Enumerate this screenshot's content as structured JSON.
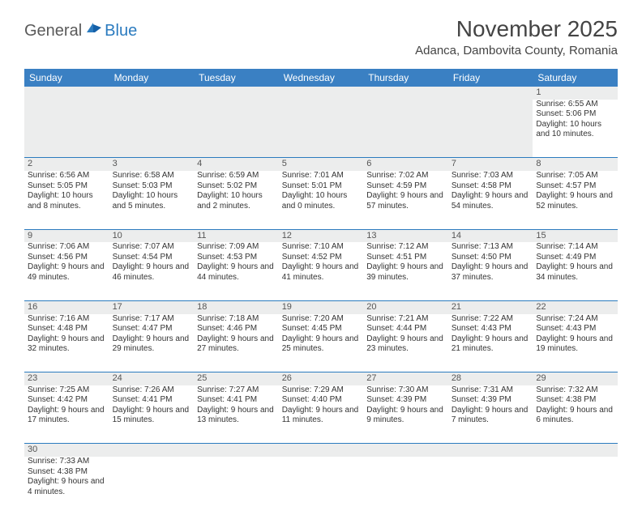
{
  "logo": {
    "general": "General",
    "blue": "Blue"
  },
  "title": "November 2025",
  "location": "Adanca, Dambovita County, Romania",
  "colors": {
    "header_bg": "#3a80c3",
    "header_text": "#ffffff",
    "daynum_bg": "#eceded",
    "border": "#2b7bbf",
    "logo_gray": "#5a5a5a",
    "logo_blue": "#2b7bbf"
  },
  "weekdays": [
    "Sunday",
    "Monday",
    "Tuesday",
    "Wednesday",
    "Thursday",
    "Friday",
    "Saturday"
  ],
  "weeks": [
    [
      null,
      null,
      null,
      null,
      null,
      null,
      {
        "n": "1",
        "sr": "6:55 AM",
        "ss": "5:06 PM",
        "dl": "10 hours and 10 minutes."
      }
    ],
    [
      {
        "n": "2",
        "sr": "6:56 AM",
        "ss": "5:05 PM",
        "dl": "10 hours and 8 minutes."
      },
      {
        "n": "3",
        "sr": "6:58 AM",
        "ss": "5:03 PM",
        "dl": "10 hours and 5 minutes."
      },
      {
        "n": "4",
        "sr": "6:59 AM",
        "ss": "5:02 PM",
        "dl": "10 hours and 2 minutes."
      },
      {
        "n": "5",
        "sr": "7:01 AM",
        "ss": "5:01 PM",
        "dl": "10 hours and 0 minutes."
      },
      {
        "n": "6",
        "sr": "7:02 AM",
        "ss": "4:59 PM",
        "dl": "9 hours and 57 minutes."
      },
      {
        "n": "7",
        "sr": "7:03 AM",
        "ss": "4:58 PM",
        "dl": "9 hours and 54 minutes."
      },
      {
        "n": "8",
        "sr": "7:05 AM",
        "ss": "4:57 PM",
        "dl": "9 hours and 52 minutes."
      }
    ],
    [
      {
        "n": "9",
        "sr": "7:06 AM",
        "ss": "4:56 PM",
        "dl": "9 hours and 49 minutes."
      },
      {
        "n": "10",
        "sr": "7:07 AM",
        "ss": "4:54 PM",
        "dl": "9 hours and 46 minutes."
      },
      {
        "n": "11",
        "sr": "7:09 AM",
        "ss": "4:53 PM",
        "dl": "9 hours and 44 minutes."
      },
      {
        "n": "12",
        "sr": "7:10 AM",
        "ss": "4:52 PM",
        "dl": "9 hours and 41 minutes."
      },
      {
        "n": "13",
        "sr": "7:12 AM",
        "ss": "4:51 PM",
        "dl": "9 hours and 39 minutes."
      },
      {
        "n": "14",
        "sr": "7:13 AM",
        "ss": "4:50 PM",
        "dl": "9 hours and 37 minutes."
      },
      {
        "n": "15",
        "sr": "7:14 AM",
        "ss": "4:49 PM",
        "dl": "9 hours and 34 minutes."
      }
    ],
    [
      {
        "n": "16",
        "sr": "7:16 AM",
        "ss": "4:48 PM",
        "dl": "9 hours and 32 minutes."
      },
      {
        "n": "17",
        "sr": "7:17 AM",
        "ss": "4:47 PM",
        "dl": "9 hours and 29 minutes."
      },
      {
        "n": "18",
        "sr": "7:18 AM",
        "ss": "4:46 PM",
        "dl": "9 hours and 27 minutes."
      },
      {
        "n": "19",
        "sr": "7:20 AM",
        "ss": "4:45 PM",
        "dl": "9 hours and 25 minutes."
      },
      {
        "n": "20",
        "sr": "7:21 AM",
        "ss": "4:44 PM",
        "dl": "9 hours and 23 minutes."
      },
      {
        "n": "21",
        "sr": "7:22 AM",
        "ss": "4:43 PM",
        "dl": "9 hours and 21 minutes."
      },
      {
        "n": "22",
        "sr": "7:24 AM",
        "ss": "4:43 PM",
        "dl": "9 hours and 19 minutes."
      }
    ],
    [
      {
        "n": "23",
        "sr": "7:25 AM",
        "ss": "4:42 PM",
        "dl": "9 hours and 17 minutes."
      },
      {
        "n": "24",
        "sr": "7:26 AM",
        "ss": "4:41 PM",
        "dl": "9 hours and 15 minutes."
      },
      {
        "n": "25",
        "sr": "7:27 AM",
        "ss": "4:41 PM",
        "dl": "9 hours and 13 minutes."
      },
      {
        "n": "26",
        "sr": "7:29 AM",
        "ss": "4:40 PM",
        "dl": "9 hours and 11 minutes."
      },
      {
        "n": "27",
        "sr": "7:30 AM",
        "ss": "4:39 PM",
        "dl": "9 hours and 9 minutes."
      },
      {
        "n": "28",
        "sr": "7:31 AM",
        "ss": "4:39 PM",
        "dl": "9 hours and 7 minutes."
      },
      {
        "n": "29",
        "sr": "7:32 AM",
        "ss": "4:38 PM",
        "dl": "9 hours and 6 minutes."
      }
    ],
    [
      {
        "n": "30",
        "sr": "7:33 AM",
        "ss": "4:38 PM",
        "dl": "9 hours and 4 minutes."
      },
      null,
      null,
      null,
      null,
      null,
      null
    ]
  ],
  "labels": {
    "sunrise": "Sunrise: ",
    "sunset": "Sunset: ",
    "daylight": "Daylight: "
  }
}
